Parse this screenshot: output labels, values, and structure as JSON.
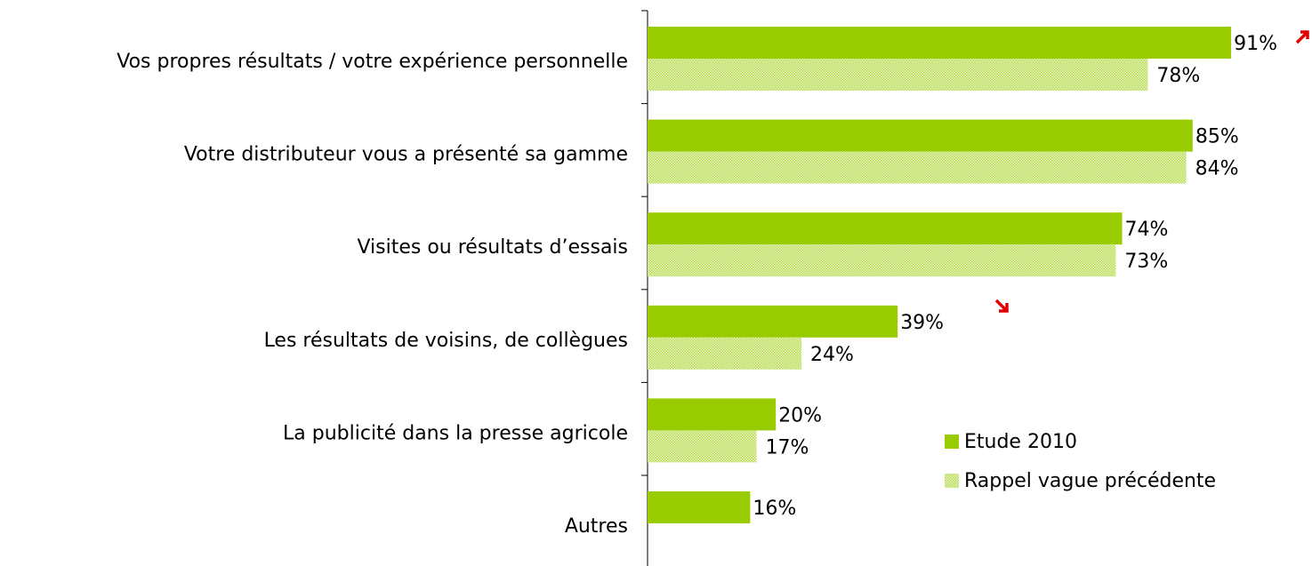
{
  "chart_data": {
    "type": "bar",
    "orientation": "horizontal",
    "categories": [
      "Vos propres résultats / votre expérience personnelle",
      "Votre distributeur vous a présenté sa gamme",
      "Visites ou résultats d’essais",
      "Les résultats de voisins, de collègues",
      "La publicité dans la presse agricole",
      "Autres"
    ],
    "series": [
      {
        "name": "Etude 2010",
        "color": "#99cc00",
        "values": [
          91,
          85,
          74,
          39,
          20,
          16
        ],
        "value_labels": [
          "91%",
          "85%",
          "74%",
          "39%",
          "20%",
          "16%"
        ]
      },
      {
        "name": "Rappel vague précédente",
        "color": "#cce680",
        "values": [
          78,
          84,
          73,
          24,
          17,
          null
        ],
        "value_labels": [
          "78%",
          "84%",
          "73%",
          "24%",
          "17%",
          null
        ]
      }
    ],
    "xlim": [
      0,
      100
    ],
    "legend": "lower right"
  }
}
